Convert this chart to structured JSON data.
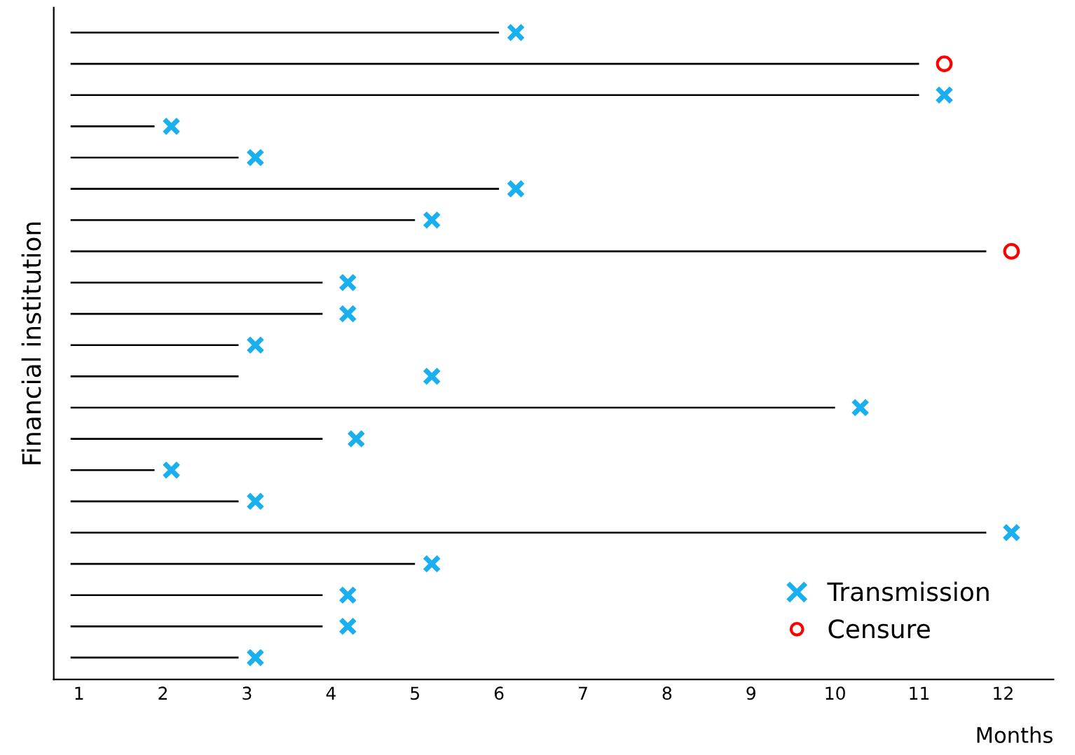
{
  "chart_data": {
    "type": "bar",
    "orientation": "horizontal",
    "xlabel": "Months",
    "ylabel": "Financial institution",
    "categories": [
      null,
      null,
      null,
      null,
      null,
      null,
      null,
      null,
      null,
      null,
      null,
      null,
      null,
      null,
      null,
      null,
      null,
      null,
      null,
      null,
      null
    ],
    "xlim": [
      0.7,
      12.6
    ],
    "xticks": [
      1,
      2,
      3,
      4,
      5,
      6,
      7,
      8,
      9,
      10,
      11,
      12
    ],
    "tick_labels": "x",
    "grid": false,
    "legend": "bottom right",
    "series": [
      {
        "color": "#000000",
        "base": [
          0.9,
          0.9,
          0.9,
          0.9,
          0.9,
          0.9,
          0.9,
          0.9,
          0.9,
          0.9,
          0.9,
          0.9,
          0.9,
          0.9,
          0.9,
          0.9,
          0.9,
          0.9,
          0.9,
          0.9,
          0.9
        ],
        "values": [
          5.1,
          10.1,
          10.1,
          1.0,
          2.0,
          5.1,
          4.1,
          10.9,
          3.0,
          3.0,
          2.0,
          2.0,
          9.1,
          3.0,
          1.0,
          2.0,
          10.9,
          4.1,
          3.0,
          3.0,
          2.0
        ]
      },
      {
        "type": "scatter",
        "name": "Transmission",
        "color": "#1ab0f0",
        "marker": "cross",
        "values": [
          6.2,
          null,
          11.3,
          2.1,
          3.1,
          6.2,
          5.2,
          null,
          4.2,
          4.2,
          3.1,
          5.2,
          10.3,
          4.3,
          2.1,
          3.1,
          12.1,
          5.2,
          4.2,
          4.2,
          3.1
        ]
      },
      {
        "type": "scatter",
        "name": "Censure",
        "color": "#ff0000",
        "marker": "circle",
        "values": [
          null,
          11.3,
          null,
          null,
          null,
          null,
          null,
          12.1,
          null,
          null,
          null,
          null,
          null,
          null,
          null,
          null,
          null,
          null,
          null,
          null,
          null
        ]
      }
    ]
  }
}
